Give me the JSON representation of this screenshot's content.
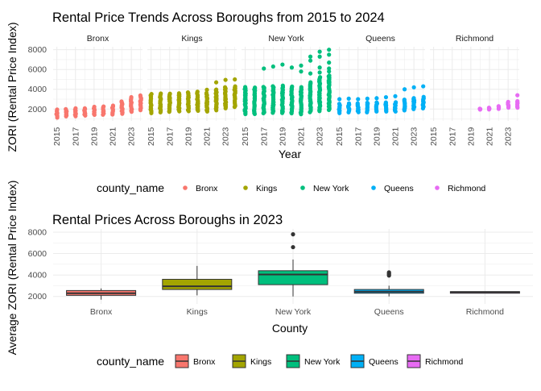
{
  "chart_data": [
    {
      "type": "scatter",
      "title": "Rental Price Trends Across Boroughs from 2015 to 2024",
      "xlabel": "Year",
      "ylabel": "ZORI (Rental Price Index)",
      "facet_by": "county_name",
      "x_ticks": [
        "2015",
        "2017",
        "2019",
        "2021",
        "2023"
      ],
      "y_ticks": [
        "2000",
        "4000",
        "6000",
        "8000"
      ],
      "ylim": [
        800,
        8300
      ],
      "xlim": [
        2014.6,
        2024.2
      ],
      "grid": true,
      "legend": {
        "title": "county_name",
        "position": "bottom"
      },
      "series": [
        {
          "name": "Bronx",
          "color": "#F8766D",
          "summary": [
            {
              "x": 2015,
              "min": 1150,
              "max": 1950
            },
            {
              "x": 2016,
              "min": 1250,
              "max": 2000
            },
            {
              "x": 2017,
              "min": 1300,
              "max": 2050
            },
            {
              "x": 2018,
              "min": 1350,
              "max": 2100
            },
            {
              "x": 2019,
              "min": 1400,
              "max": 2200
            },
            {
              "x": 2020,
              "min": 1450,
              "max": 2250
            },
            {
              "x": 2021,
              "min": 1450,
              "max": 2350
            },
            {
              "x": 2022,
              "min": 1550,
              "max": 2800
            },
            {
              "x": 2023,
              "min": 1750,
              "max": 3200
            },
            {
              "x": 2024,
              "min": 1900,
              "max": 3350
            }
          ],
          "outliers": []
        },
        {
          "name": "Kings",
          "color": "#A3A500",
          "summary": [
            {
              "x": 2015,
              "min": 1600,
              "max": 3500
            },
            {
              "x": 2016,
              "min": 1650,
              "max": 3550
            },
            {
              "x": 2017,
              "min": 1700,
              "max": 3550
            },
            {
              "x": 2018,
              "min": 1750,
              "max": 3600
            },
            {
              "x": 2019,
              "min": 1800,
              "max": 3700
            },
            {
              "x": 2020,
              "min": 1800,
              "max": 3750
            },
            {
              "x": 2021,
              "min": 1750,
              "max": 3600
            },
            {
              "x": 2022,
              "min": 1900,
              "max": 4000
            },
            {
              "x": 2023,
              "min": 2100,
              "max": 4200
            },
            {
              "x": 2024,
              "min": 2200,
              "max": 4300
            }
          ],
          "outliers": [
            {
              "x": 2021,
              "y": 3950
            },
            {
              "x": 2022,
              "y": 4700
            },
            {
              "x": 2023,
              "y": 4950
            },
            {
              "x": 2024,
              "y": 5000
            }
          ]
        },
        {
          "name": "New York",
          "color": "#00BF7D",
          "summary": [
            {
              "x": 2015,
              "min": 1500,
              "max": 4200
            },
            {
              "x": 2016,
              "min": 1500,
              "max": 4200
            },
            {
              "x": 2017,
              "min": 1550,
              "max": 4250
            },
            {
              "x": 2018,
              "min": 1600,
              "max": 4300
            },
            {
              "x": 2019,
              "min": 1600,
              "max": 4350
            },
            {
              "x": 2020,
              "min": 1550,
              "max": 4300
            },
            {
              "x": 2021,
              "min": 1500,
              "max": 4200
            },
            {
              "x": 2022,
              "min": 1700,
              "max": 4700
            },
            {
              "x": 2023,
              "min": 1800,
              "max": 5200
            },
            {
              "x": 2024,
              "min": 1900,
              "max": 5400
            }
          ],
          "outliers": [
            {
              "x": 2017,
              "y": 6100
            },
            {
              "x": 2018,
              "y": 6300
            },
            {
              "x": 2019,
              "y": 6500
            },
            {
              "x": 2020,
              "y": 6200
            },
            {
              "x": 2021,
              "y": 6400
            },
            {
              "x": 2021,
              "y": 5800
            },
            {
              "x": 2022,
              "y": 6900
            },
            {
              "x": 2022,
              "y": 7300
            },
            {
              "x": 2022,
              "y": 5600
            },
            {
              "x": 2023,
              "y": 7800
            },
            {
              "x": 2023,
              "y": 7300
            },
            {
              "x": 2023,
              "y": 6200
            },
            {
              "x": 2023,
              "y": 5700
            },
            {
              "x": 2024,
              "y": 8000
            },
            {
              "x": 2024,
              "y": 7500
            },
            {
              "x": 2024,
              "y": 6700
            },
            {
              "x": 2024,
              "y": 6100
            },
            {
              "x": 2024,
              "y": 5800
            }
          ]
        },
        {
          "name": "Queens",
          "color": "#00B0F6",
          "summary": [
            {
              "x": 2015,
              "min": 1600,
              "max": 2500
            },
            {
              "x": 2016,
              "min": 1650,
              "max": 2550
            },
            {
              "x": 2017,
              "min": 1700,
              "max": 2600
            },
            {
              "x": 2018,
              "min": 1700,
              "max": 2650
            },
            {
              "x": 2019,
              "min": 1750,
              "max": 2650
            },
            {
              "x": 2020,
              "min": 1750,
              "max": 2700
            },
            {
              "x": 2021,
              "min": 1750,
              "max": 2700
            },
            {
              "x": 2022,
              "min": 1850,
              "max": 2950
            },
            {
              "x": 2023,
              "min": 2000,
              "max": 3100
            },
            {
              "x": 2024,
              "min": 2100,
              "max": 3200
            }
          ],
          "outliers": [
            {
              "x": 2015,
              "y": 3000
            },
            {
              "x": 2016,
              "y": 3050
            },
            {
              "x": 2017,
              "y": 3000
            },
            {
              "x": 2018,
              "y": 3050
            },
            {
              "x": 2019,
              "y": 3100
            },
            {
              "x": 2020,
              "y": 3200
            },
            {
              "x": 2021,
              "y": 3300
            },
            {
              "x": 2022,
              "y": 4000
            },
            {
              "x": 2023,
              "y": 4200
            },
            {
              "x": 2024,
              "y": 4300
            }
          ]
        },
        {
          "name": "Richmond",
          "color": "#E76BF3",
          "summary": [
            {
              "x": 2020,
              "min": 1950,
              "max": 2050
            },
            {
              "x": 2021,
              "min": 1950,
              "max": 2150
            },
            {
              "x": 2022,
              "min": 2050,
              "max": 2300
            },
            {
              "x": 2023,
              "min": 2150,
              "max": 2700
            },
            {
              "x": 2024,
              "min": 2150,
              "max": 2800
            }
          ],
          "outliers": [
            {
              "x": 2024,
              "y": 3400
            }
          ]
        }
      ]
    },
    {
      "type": "box",
      "title": "Rental Prices Across Boroughs in 2023",
      "xlabel": "County",
      "ylabel": "Average ZORI (Rental Price Index)",
      "categories": [
        "Bronx",
        "Kings",
        "New York",
        "Queens",
        "Richmond"
      ],
      "y_ticks": [
        "2000",
        "4000",
        "6000",
        "8000"
      ],
      "ylim": [
        1300,
        8300
      ],
      "grid": true,
      "legend": {
        "title": "county_name",
        "position": "bottom"
      },
      "boxes": [
        {
          "name": "Bronx",
          "color": "#F8766D",
          "q1": 2100,
          "median": 2300,
          "q3": 2550,
          "whisker_low": 1700,
          "whisker_high": 2750,
          "outliers": []
        },
        {
          "name": "Kings",
          "color": "#A3A500",
          "q1": 2650,
          "median": 2950,
          "q3": 3600,
          "whisker_low": 2100,
          "whisker_high": 4850,
          "outliers": []
        },
        {
          "name": "New York",
          "color": "#00BF7D",
          "q1": 3100,
          "median": 4050,
          "q3": 4400,
          "whisker_low": 2000,
          "whisker_high": 5450,
          "outliers": [
            6600,
            7800
          ]
        },
        {
          "name": "Queens",
          "color": "#00B0F6",
          "q1": 2300,
          "median": 2450,
          "q3": 2650,
          "whisker_low": 2000,
          "whisker_high": 3000,
          "outliers": [
            3950,
            4050,
            4150,
            4250
          ]
        },
        {
          "name": "Richmond",
          "color": "#E76BF3",
          "q1": 2300,
          "median": 2400,
          "q3": 2450,
          "whisker_low": 2300,
          "whisker_high": 2450,
          "outliers": []
        }
      ]
    }
  ]
}
